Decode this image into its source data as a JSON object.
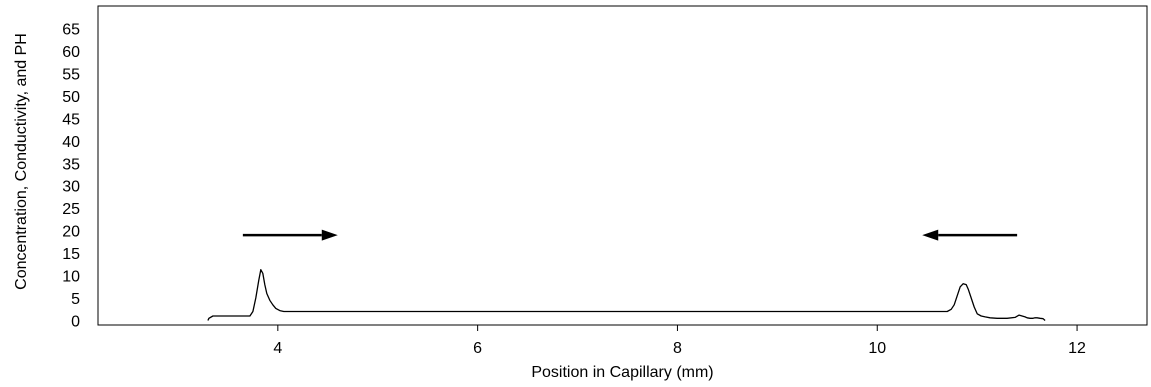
{
  "chart_data": {
    "type": "line",
    "title": "",
    "xlabel": "Position in Capillary (mm)",
    "ylabel": "Concentration, Conductivity, and PH",
    "xlim": [
      2.2,
      12.7
    ],
    "ylim": [
      -1,
      70
    ],
    "x_ticks": [
      4,
      6,
      8,
      10,
      12
    ],
    "y_ticks": [
      0,
      5,
      10,
      15,
      20,
      25,
      30,
      35,
      40,
      45,
      50,
      55,
      60,
      65
    ],
    "grid": false,
    "legend": "none",
    "line_color": "#000000",
    "series": [
      {
        "x": [
          3.3,
          3.31,
          3.35,
          3.5,
          3.6,
          3.7,
          3.72,
          3.75,
          3.78,
          3.81,
          3.83,
          3.85,
          3.87,
          3.89,
          3.92,
          3.95,
          3.98,
          4.02,
          4.06,
          4.1,
          4.15,
          10.7,
          10.74,
          10.77,
          10.8,
          10.83,
          10.86,
          10.89,
          10.91,
          10.94,
          10.97,
          11.0,
          11.04,
          11.08,
          11.13,
          11.2,
          11.3,
          11.38,
          11.42,
          11.45,
          11.48,
          11.5,
          11.53,
          11.56,
          11.58,
          11.6,
          11.63,
          11.66,
          11.68
        ],
        "y": [
          0,
          0.5,
          1,
          1,
          1,
          1,
          1,
          2,
          5,
          9,
          11.3,
          10.5,
          8,
          6,
          4.5,
          3.5,
          2.7,
          2.2,
          2,
          2,
          2,
          2,
          2.5,
          3.5,
          5.5,
          7.5,
          8.2,
          8,
          7,
          5,
          3,
          1.5,
          1,
          0.8,
          0.6,
          0.5,
          0.5,
          0.7,
          1.2,
          1,
          0.8,
          0.6,
          0.5,
          0.5,
          0.6,
          0.6,
          0.5,
          0.4,
          0
        ]
      }
    ],
    "annotations": [
      {
        "type": "arrow",
        "direction": "right",
        "x_from": 3.65,
        "x_to": 4.6,
        "y": 19
      },
      {
        "type": "arrow",
        "direction": "left",
        "x_from": 11.4,
        "x_to": 10.45,
        "y": 19
      }
    ]
  }
}
